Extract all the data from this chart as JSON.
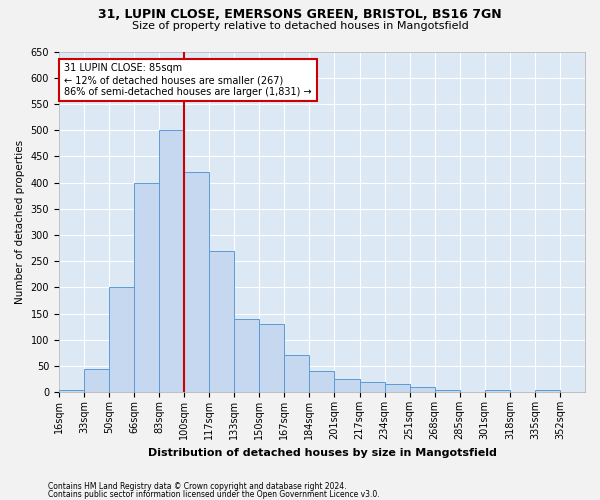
{
  "title_line1": "31, LUPIN CLOSE, EMERSONS GREEN, BRISTOL, BS16 7GN",
  "title_line2": "Size of property relative to detached houses in Mangotsfield",
  "xlabel": "Distribution of detached houses by size in Mangotsfield",
  "ylabel": "Number of detached properties",
  "categories": [
    "16sqm",
    "33sqm",
    "50sqm",
    "66sqm",
    "83sqm",
    "100sqm",
    "117sqm",
    "133sqm",
    "150sqm",
    "167sqm",
    "184sqm",
    "201sqm",
    "217sqm",
    "234sqm",
    "251sqm",
    "268sqm",
    "285sqm",
    "301sqm",
    "318sqm",
    "335sqm",
    "352sqm"
  ],
  "values": [
    5,
    45,
    200,
    400,
    500,
    420,
    270,
    140,
    130,
    70,
    40,
    25,
    20,
    15,
    10,
    5,
    0,
    5,
    0,
    5
  ],
  "bar_color": "#c5d8f0",
  "bar_edge_color": "#5b9bd5",
  "fig_bg_color": "#f2f2f2",
  "plot_bg_color": "#dce9f5",
  "grid_color": "#ffffff",
  "vline_color": "#cc0000",
  "annotation_text": "31 LUPIN CLOSE: 85sqm\n← 12% of detached houses are smaller (267)\n86% of semi-detached houses are larger (1,831) →",
  "annotation_box_facecolor": "#ffffff",
  "annotation_box_edgecolor": "#cc0000",
  "footnote1": "Contains HM Land Registry data © Crown copyright and database right 2024.",
  "footnote2": "Contains public sector information licensed under the Open Government Licence v3.0.",
  "ylim": [
    0,
    650
  ],
  "yticks": [
    0,
    50,
    100,
    150,
    200,
    250,
    300,
    350,
    400,
    450,
    500,
    550,
    600,
    650
  ],
  "title1_fontsize": 9,
  "title2_fontsize": 8,
  "ylabel_fontsize": 7.5,
  "xlabel_fontsize": 8,
  "tick_fontsize": 7,
  "annot_fontsize": 7,
  "footnote_fontsize": 5.5
}
